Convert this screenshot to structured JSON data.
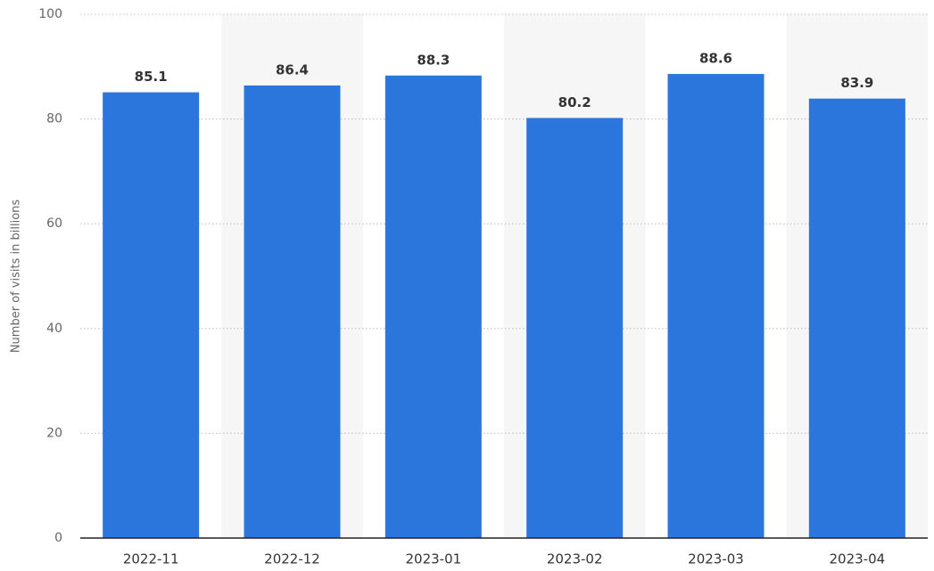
{
  "chart_data": {
    "type": "bar",
    "y_label": "Number of visits in billions",
    "categories": [
      "2022-11",
      "2022-12",
      "2023-01",
      "2023-02",
      "2023-03",
      "2023-04"
    ],
    "values": [
      85.1,
      86.4,
      88.3,
      80.2,
      88.6,
      83.9
    ],
    "color": "#2a76dd",
    "ylim": [
      0,
      100
    ],
    "yticks": [
      0,
      20,
      40,
      60,
      80,
      100
    ],
    "grid": true
  }
}
